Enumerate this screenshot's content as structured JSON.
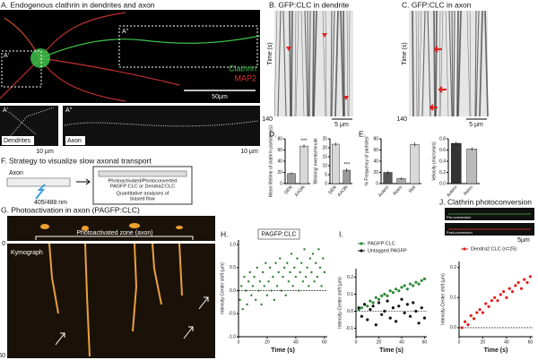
{
  "panels": {
    "A": {
      "title": "A. Endogenous clathrin in dendrites and axon",
      "region1": "A'",
      "region2": "A''",
      "channels": [
        "Clathrin",
        "MAP2"
      ],
      "scale": "50µm",
      "zoom1": {
        "label": "A'",
        "caption": "Dendrites",
        "scale": "10 µm"
      },
      "zoom2": {
        "label": "A''",
        "caption": "Axon",
        "scale": "10 µm"
      }
    },
    "B": {
      "title": "B. GFP:CLC in dendrite",
      "axis": "Time (s)",
      "end": 140,
      "scale": "5 µm"
    },
    "C": {
      "title": "C. GFP:CLC in axon",
      "axis": "Time (s)",
      "end": 140,
      "scale": "5 µm"
    },
    "D": {
      "label": "D."
    },
    "E": {
      "label": "E."
    },
    "F": {
      "title": "F. Strategy to visualize slow axonal transport",
      "axon": "Axon",
      "laser": "405/488 nm",
      "box_lines": [
        "Photoactivated/Photoconverted",
        "PAGFP:CLC or Dendra2:CLC",
        "Quantitative analyses of",
        "biased flow"
      ]
    },
    "G": {
      "title": "G. Photoactivation in axon (PAGFP:CLC)",
      "zone": "Photoactivated zone (axon)",
      "kymo": "Kymograph",
      "t0": 0,
      "t1": 60
    },
    "H": {
      "label": "H."
    },
    "I": {
      "label": "I."
    },
    "J": {
      "title": "J. Clathrin photoconversion",
      "pre": "Pre-conversion",
      "post": "Post-conversion",
      "scale": "5µm"
    }
  },
  "chart_data": [
    {
      "type": "bar",
      "ylabel": "Mean lifetime of clathrin particles (s)",
      "categories": [
        "DEN",
        "AXON"
      ],
      "values": [
        18,
        67
      ],
      "errors": [
        2,
        3
      ],
      "colors": [
        "#9a9a9a",
        "#d8d8d8"
      ],
      "ylim": [
        0,
        80
      ],
      "yticks": [
        0,
        20,
        40,
        60,
        80
      ],
      "annotation": "***"
    },
    {
      "type": "bar",
      "ylabel": "'Blinking' events/minute",
      "categories": [
        "DEN",
        "AXON"
      ],
      "values": [
        22,
        7.5
      ],
      "errors": [
        1,
        1
      ],
      "colors": [
        "#d8d8d8",
        "#9a9a9a"
      ],
      "ylim": [
        0,
        25
      ],
      "yticks": [
        0,
        5,
        10,
        15,
        20,
        25
      ],
      "annotation": "***"
    },
    {
      "type": "bar",
      "ylabel": "% Frequency of particles",
      "categories": [
        "Antero",
        "Retro",
        "Stat"
      ],
      "values": [
        20,
        9,
        70
      ],
      "errors": [
        3,
        2,
        4
      ],
      "colors": [
        "#555555",
        "#aaaaaa",
        "#d8d8d8"
      ],
      "ylim": [
        0,
        80
      ],
      "yticks": [
        0,
        20,
        40,
        60,
        80
      ]
    },
    {
      "type": "bar",
      "ylabel": "Velocity (microns/s)",
      "categories": [
        "Antero",
        "Retro"
      ],
      "values": [
        0.72,
        0.62
      ],
      "errors": [
        0.03,
        0.03
      ],
      "colors": [
        "#333333",
        "#bbbbbb"
      ],
      "ylim": [
        0,
        0.8
      ],
      "yticks": [
        {
          "value": 0,
          "label": "0.0"
        },
        0.2,
        0.4,
        0.6,
        0.8
      ]
    },
    {
      "type": "scatter",
      "legend": "box",
      "ylabel": "Intensity-Center shift (µm)",
      "xlabel": "Time (s)",
      "xlim": [
        0,
        62
      ],
      "xticks": [
        0,
        20,
        40,
        60
      ],
      "ylim": [
        -1,
        1.1
      ],
      "yticks": [
        {
          "value": -1,
          "label": "-1.0"
        },
        -0.5,
        {
          "value": 0,
          "label": "0.0"
        },
        0.5,
        {
          "value": 1,
          "label": "1.0"
        }
      ],
      "x": [
        1,
        2,
        3,
        4,
        5,
        6,
        7,
        8,
        9,
        10,
        11,
        12,
        13,
        14,
        15,
        16,
        17,
        18,
        19,
        20,
        21,
        22,
        23,
        24,
        25,
        26,
        27,
        28,
        29,
        30,
        31,
        32,
        33,
        34,
        35,
        36,
        37,
        38,
        39,
        40,
        41,
        42,
        43,
        44,
        45,
        46,
        47,
        48,
        49,
        50,
        51,
        52,
        53,
        54,
        55,
        56,
        57,
        58,
        59,
        60
      ],
      "series": [
        {
          "name": "PAGFP:CLC",
          "color": "#2e7d32",
          "values": [
            -0.2,
            0.1,
            -0.4,
            0.3,
            0.0,
            -0.3,
            0.2,
            0.4,
            -0.1,
            0.1,
            0.3,
            -0.2,
            0.5,
            0.0,
            0.2,
            -0.3,
            0.4,
            0.1,
            0.6,
            -0.1,
            0.2,
            0.5,
            0.0,
            0.3,
            -0.2,
            0.6,
            0.1,
            0.4,
            0.7,
            0.0,
            0.3,
            0.5,
            -0.1,
            0.6,
            0.2,
            0.4,
            0.8,
            0.1,
            0.5,
            0.3,
            0.7,
            0.0,
            0.4,
            0.6,
            0.2,
            0.9,
            0.3,
            0.5,
            0.1,
            0.7,
            0.4,
            0.8,
            0.2,
            0.6,
            0.3,
            0.9,
            0.5,
            0.1,
            0.7,
            0.4
          ]
        }
      ]
    },
    {
      "type": "scatter",
      "legend": "list",
      "ylabel": "Intensity-Center shift (µm)",
      "xlabel": "Time (s)",
      "xlim": [
        0,
        62
      ],
      "xticks": [
        0,
        20,
        40,
        60
      ],
      "ylim": [
        -0.15,
        0.25
      ],
      "yticks": [
        -0.1,
        {
          "value": 0,
          "label": "0.0"
        },
        0.1,
        0.2
      ],
      "x": [
        2.5,
        5,
        7.5,
        10,
        12.5,
        15,
        17.5,
        20,
        22.5,
        25,
        27.5,
        30,
        32.5,
        35,
        37.5,
        40,
        42.5,
        45,
        47.5,
        50,
        52.5,
        55,
        57.5,
        60
      ],
      "series": [
        {
          "name": "PAGFP:CLC",
          "color": "#2e8b3a",
          "values": [
            0.01,
            0.02,
            0.04,
            0.03,
            0.06,
            0.05,
            0.08,
            0.07,
            0.09,
            0.1,
            0.09,
            0.12,
            0.11,
            0.13,
            0.12,
            0.14,
            0.15,
            0.13,
            0.16,
            0.15,
            0.17,
            0.16,
            0.18,
            0.19
          ]
        },
        {
          "name": "Untagged PAGFP",
          "color": "#111111",
          "values": [
            0.02,
            -0.03,
            0.04,
            -0.05,
            0.01,
            0.03,
            -0.08,
            0.05,
            -0.02,
            0.0,
            0.06,
            -0.04,
            0.02,
            -0.06,
            0.03,
            0.07,
            -0.01,
            0.04,
            -0.03,
            0.05,
            0.0,
            -0.07,
            0.02,
            -0.04
          ]
        }
      ]
    },
    {
      "type": "scatter",
      "legend": "list",
      "ylabel": "Intensity-Center shift (µm)",
      "xlabel": "Time (s)",
      "xlim": [
        0,
        62
      ],
      "xticks": [
        0,
        20,
        40,
        60
      ],
      "ylim": [
        -0.03,
        0.22
      ],
      "yticks": [
        {
          "value": 0,
          "label": "0.0"
        },
        0.1,
        0.2
      ],
      "x": [
        2.5,
        5,
        7.5,
        10,
        12.5,
        15,
        17.5,
        20,
        22.5,
        25,
        27.5,
        30,
        32.5,
        35,
        37.5,
        40,
        42.5,
        45,
        47.5,
        50,
        52.5,
        55,
        57.5,
        60
      ],
      "series": [
        {
          "name": "Dendra2:CLC (n=25)",
          "color": "#e02020",
          "values": [
            0.0,
            0.02,
            0.01,
            0.04,
            0.03,
            0.05,
            0.06,
            0.05,
            0.08,
            0.07,
            0.09,
            0.1,
            0.09,
            0.11,
            0.12,
            0.1,
            0.13,
            0.12,
            0.14,
            0.15,
            0.13,
            0.16,
            0.15,
            0.17
          ]
        }
      ]
    }
  ]
}
